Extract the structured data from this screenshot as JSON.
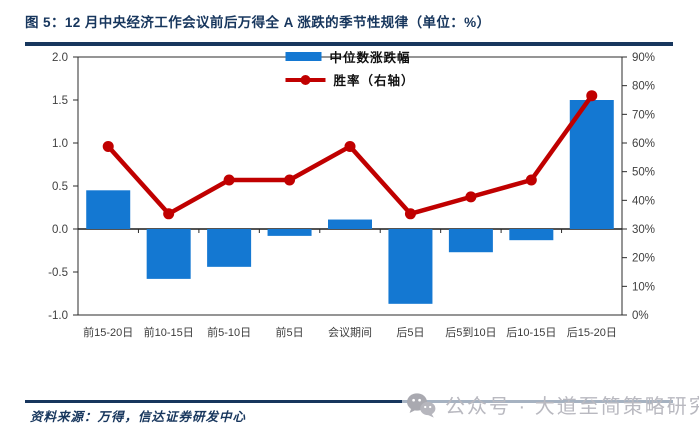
{
  "title": "图 5：12 月中央经济工作会议前后万得全 A 涨跌的季节性规律（单位：%）",
  "source": "资料来源：万得，信达证券研发中心",
  "watermark": {
    "icon": "wechat-icon",
    "text": "公众号 · 大道至简策略研究"
  },
  "colors": {
    "title_navy": "#17365d",
    "bar_blue": "#1478d2",
    "line_red": "#c00000",
    "axis_text": "#404040",
    "watermark_gray": "#b9b9c0"
  },
  "chart_data": {
    "type": "bar",
    "subtype": "bar+line combo, line on secondary axis",
    "categories": [
      "前15-20日",
      "前10-15日",
      "前5-10日",
      "前5日",
      "会议期间",
      "后5日",
      "后5到10日",
      "后10-15日",
      "后15-20日"
    ],
    "series": [
      {
        "name": "中位数涨跌幅",
        "type": "bar",
        "axis": "left",
        "color": "#1478d2",
        "values": [
          0.45,
          -0.58,
          -0.44,
          -0.08,
          0.11,
          -0.87,
          -0.27,
          -0.13,
          1.5
        ]
      },
      {
        "name": "胜率（右轴）",
        "type": "line",
        "axis": "right",
        "color": "#c00000",
        "values": [
          58.8,
          35.3,
          47.1,
          47.1,
          58.8,
          35.3,
          41.2,
          47.1,
          76.5
        ]
      }
    ],
    "left_axis": {
      "min": -1.0,
      "max": 2.0,
      "step": 0.5,
      "ticks": [
        "2.0",
        "1.5",
        "1.0",
        "0.5",
        "0.0",
        "-0.5",
        "-1.0"
      ]
    },
    "right_axis": {
      "min": 0,
      "max": 90,
      "step": 10,
      "ticks": [
        "90%",
        "80%",
        "70%",
        "60%",
        "50%",
        "40%",
        "30%",
        "20%",
        "10%",
        "0%"
      ]
    },
    "grid": false,
    "legend_position": "top-center",
    "plot_border": true
  }
}
